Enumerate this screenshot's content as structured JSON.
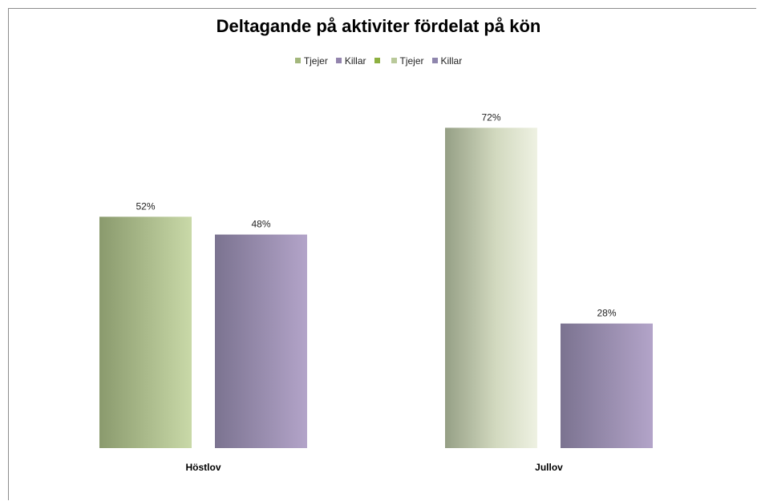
{
  "chart_data": {
    "type": "bar",
    "title": "Deltagande på aktiviter fördelat på kön",
    "categories": [
      "Höstlov",
      "Jullov"
    ],
    "series": [
      {
        "name": "Tjejer",
        "values": [
          52,
          72
        ],
        "value_labels": [
          "52%",
          "72%"
        ],
        "color": "#c9d9a8"
      },
      {
        "name": "Killar",
        "values": [
          48,
          28
        ],
        "value_labels": [
          "48%",
          "28%"
        ],
        "color": "#b3a4c9"
      }
    ],
    "legend": {
      "position": "top",
      "entries": [
        {
          "label": "Tjejer",
          "color": "#a3b77c"
        },
        {
          "label": "Killar",
          "color": "#9384ad"
        },
        {
          "label": "",
          "color": "#8db041"
        },
        {
          "label": "Tjejer",
          "color": "#b9c99a"
        },
        {
          "label": "Killar",
          "color": "#8f86ad"
        }
      ]
    },
    "ylim": [
      0,
      100
    ],
    "grid": false
  }
}
